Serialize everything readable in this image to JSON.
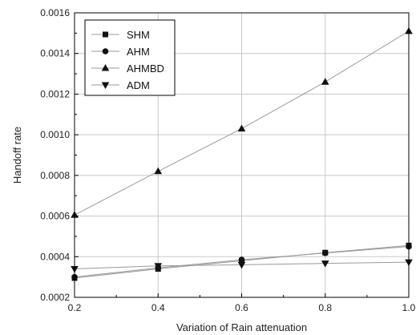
{
  "chart_data": {
    "type": "line",
    "xlabel": "Variation of Rain attenuation",
    "ylabel": "Handoff rate",
    "x": [
      0.2,
      0.4,
      0.6,
      0.8,
      1.0
    ],
    "xlim": [
      0.2,
      1.0
    ],
    "ylim": [
      0.0002,
      0.0016
    ],
    "xticks": [
      "0.2",
      "0.4",
      "0.6",
      "0.8",
      "1.0"
    ],
    "yticks": [
      "0.0002",
      "0.0004",
      "0.0006",
      "0.0008",
      "0.0010",
      "0.0012",
      "0.0014",
      "0.0016"
    ],
    "xtick_values": [
      0.2,
      0.4,
      0.6,
      0.8,
      1.0
    ],
    "ytick_values": [
      0.0002,
      0.0004,
      0.0006,
      0.0008,
      0.001,
      0.0012,
      0.0014,
      0.0016
    ],
    "grid": true,
    "legend_position": "top-left",
    "series": [
      {
        "name": "SHM",
        "marker": "square",
        "values": [
          0.000295,
          0.00034,
          0.00038,
          0.00042,
          0.000455
        ]
      },
      {
        "name": "AHM",
        "marker": "circle",
        "values": [
          0.0003,
          0.000345,
          0.000385,
          0.000418,
          0.00045
        ]
      },
      {
        "name": "AHMBD",
        "marker": "triangle-up",
        "values": [
          0.000605,
          0.00082,
          0.00103,
          0.00126,
          0.00151
        ]
      },
      {
        "name": "ADM",
        "marker": "triangle-down",
        "values": [
          0.00034,
          0.000355,
          0.00036,
          0.000367,
          0.000373
        ]
      }
    ],
    "colors": {
      "line": "#9a9a9a",
      "marker": "#111111",
      "grid": "#c8c8c8",
      "axis": "#000000"
    }
  }
}
